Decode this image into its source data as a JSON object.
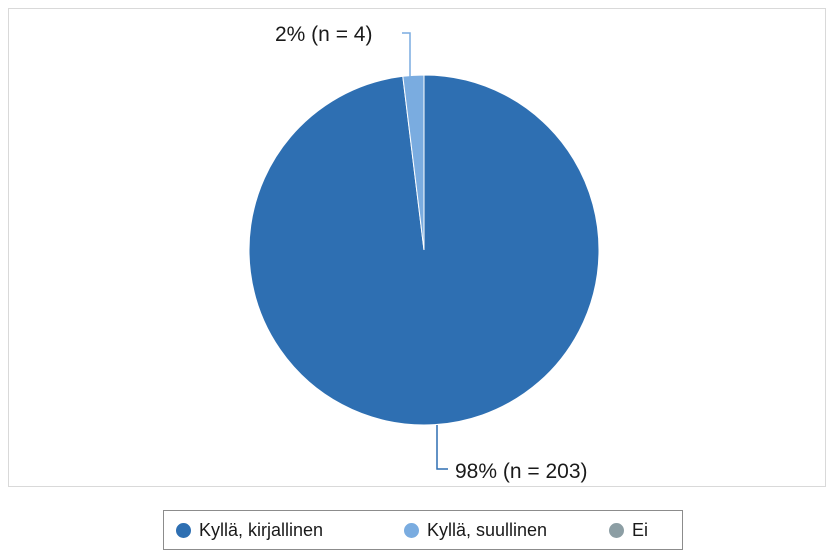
{
  "chart_data": {
    "type": "pie",
    "title": "",
    "categories": [
      "Kyllä, kirjallinen",
      "Kyllä, suullinen",
      "Ei"
    ],
    "values": [
      203,
      4,
      0
    ],
    "percent": [
      98,
      2,
      0
    ],
    "colors": [
      "#2e6fb2",
      "#7aace0",
      "#8c9ea4"
    ],
    "data_labels": [
      "98% (n = 203)",
      "2% (n = 4)",
      ""
    ],
    "legend": {
      "placement": "bottom",
      "items": [
        {
          "label": "Kyllä, kirjallinen",
          "color": "#2e6fb2"
        },
        {
          "label": "Kyllä, suullinen",
          "color": "#7aace0"
        },
        {
          "label": "Ei",
          "color": "#8c9ea4"
        }
      ]
    }
  }
}
